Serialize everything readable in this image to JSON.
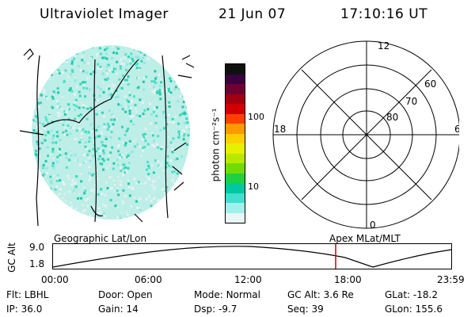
{
  "header": {
    "instrument": "Ultraviolet Imager",
    "date": "21 Jun 07",
    "time": "17:10:16 UT"
  },
  "colorbar": {
    "unit_label": "photon cm⁻²s⁻¹",
    "ticks": [
      "100",
      "10"
    ],
    "colors": [
      "#101010",
      "#3a0040",
      "#700030",
      "#a00010",
      "#d00000",
      "#ff4000",
      "#ff9900",
      "#ffd000",
      "#e6f000",
      "#b8e800",
      "#70dc00",
      "#20d040",
      "#00c8a0",
      "#40e0d0",
      "#a0f0ec",
      "#e8f6f6"
    ]
  },
  "polar_plot": {
    "mlt_labels": {
      "top": "12",
      "left": "18",
      "right": "6",
      "bottom": "0"
    },
    "lat_labels": [
      "60",
      "70",
      "80"
    ]
  },
  "timeline": {
    "left_label": "Geographic Lat/Lon",
    "right_label": "Apex MLat/MLT",
    "y_axis_title": "GC Alt",
    "y_ticks": [
      "9.0",
      "1.8"
    ],
    "x_ticks": [
      "00:00",
      "06:00",
      "12:00",
      "18:00",
      "23:59"
    ],
    "marker_color": "#cc0000"
  },
  "status": {
    "row1": [
      {
        "label": "Flt:",
        "value": "LBHL"
      },
      {
        "label": "Door:",
        "value": "Open"
      },
      {
        "label": "Mode:",
        "value": "Normal"
      },
      {
        "label": "GC Alt:",
        "value": "3.6 Re"
      },
      {
        "label": "GLat:",
        "value": "-18.2"
      }
    ],
    "row2": [
      {
        "label": "IP:",
        "value": "36.0"
      },
      {
        "label": "Gain:",
        "value": "14"
      },
      {
        "label": "Dsp:",
        "value": "-9.7"
      },
      {
        "label": "Seq:",
        "value": "39"
      },
      {
        "label": "GLon:",
        "value": "155.6"
      }
    ]
  }
}
